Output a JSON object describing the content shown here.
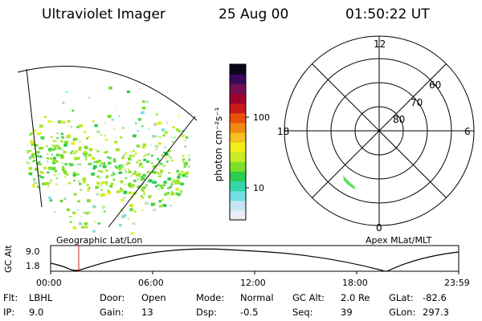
{
  "header": {
    "instrument": "Ultraviolet Imager",
    "date": "25 Aug 00",
    "time": "01:50:22 UT"
  },
  "colorbar": {
    "unit_label": "photon cm⁻²s⁻¹",
    "ticks": [
      "100",
      "10"
    ],
    "scale": "log",
    "colors": [
      "#e8eef6",
      "#c8e6f2",
      "#74dce4",
      "#33d7a6",
      "#2ccc50",
      "#7ae02a",
      "#c8ec24",
      "#f0f018",
      "#f6c020",
      "#f08a10",
      "#e85008",
      "#c81818",
      "#a00030",
      "#701050",
      "#3a0a5a",
      "#080818"
    ]
  },
  "polar_plot": {
    "mlt_labels": {
      "top": "12",
      "bottom": "0",
      "left": "18",
      "right": "6"
    },
    "lat_labels": [
      "60",
      "70",
      "80"
    ]
  },
  "sublabels": {
    "left": "Geographic Lat/Lon",
    "right": "Apex MLat/MLT"
  },
  "altitude_plot": {
    "ylabel": "GC Alt",
    "yticks": [
      "9.0",
      "1.8"
    ],
    "xticks": [
      "00:00",
      "06:00",
      "12:00",
      "18:00",
      "23:59"
    ],
    "current_time_marker": "01:50:22"
  },
  "footer": [
    [
      {
        "k": "Flt:",
        "v": "LBHL"
      },
      {
        "k": "Door:",
        "v": "Open"
      },
      {
        "k": "Mode:",
        "v": "Normal"
      },
      {
        "k": "GC Alt:",
        "v": "2.0 Re"
      },
      {
        "k": "GLat:",
        "v": "-82.6"
      }
    ],
    [
      {
        "k": "IP:",
        "v": "9.0"
      },
      {
        "k": "Gain:",
        "v": "13"
      },
      {
        "k": "Dsp:",
        "v": "-0.5"
      },
      {
        "k": "Seq:",
        "v": "39"
      },
      {
        "k": "GLon:",
        "v": "297.3"
      }
    ]
  ]
}
